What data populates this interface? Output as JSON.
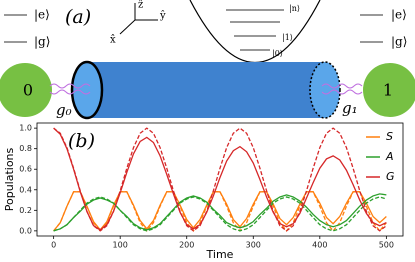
{
  "diagram": {
    "panel_a": "(a)",
    "left_e": "|e⟩",
    "left_g": "|g⟩",
    "right_e": "|e⟩",
    "right_g": "|g⟩",
    "axis_z": "ẑ",
    "axis_y": "ŷ",
    "axis_x": "x̂",
    "level_n": "|n⟩",
    "level_1": "|1⟩",
    "level_0": "|0⟩",
    "qubit_0": "0",
    "qubit_1": "1",
    "coupling_0": "g₀",
    "coupling_1": "g₁"
  },
  "chart_data": {
    "type": "line",
    "panel_label": "(b)",
    "x_label": "Time",
    "y_label": "Populations",
    "x": [
      0,
      10,
      20,
      30,
      40,
      50,
      60,
      70,
      80,
      90,
      100,
      110,
      120,
      130,
      140,
      150,
      160,
      170,
      180,
      190,
      200,
      210,
      220,
      230,
      240,
      250,
      260,
      270,
      280,
      290,
      300,
      310,
      320,
      330,
      340,
      350,
      360,
      370,
      380,
      390,
      400,
      410,
      420,
      430,
      440,
      450,
      460,
      470,
      480,
      490,
      500
    ],
    "xlim": [
      -25,
      525
    ],
    "xticks": [
      0,
      100,
      200,
      300,
      400,
      500
    ],
    "ylim": [
      -0.05,
      1.05
    ],
    "yticks": [
      {
        "value": 0,
        "label": "0.0"
      },
      0.2,
      0.4,
      0.6,
      0.8,
      {
        "value": 1,
        "label": "1.0"
      }
    ],
    "legend": "upper right",
    "series": [
      {
        "name": "S",
        "color": "#ff7f0e",
        "values": [
          0,
          0.08,
          0.24,
          0.38,
          0.38,
          0.24,
          0.09,
          0.01,
          0.09,
          0.25,
          0.38,
          0.38,
          0.25,
          0.1,
          0.02,
          0.1,
          0.25,
          0.38,
          0.38,
          0.25,
          0.11,
          0.03,
          0.11,
          0.25,
          0.38,
          0.38,
          0.26,
          0.11,
          0.04,
          0.12,
          0.26,
          0.38,
          0.38,
          0.26,
          0.12,
          0.06,
          0.13,
          0.26,
          0.38,
          0.38,
          0.27,
          0.13,
          0.07,
          0.14,
          0.27,
          0.38,
          0.38,
          0.27,
          0.14,
          0.08,
          0.14
        ],
        "dashed_values": [
          0,
          0.08,
          0.24,
          0.38,
          0.38,
          0.24,
          0.08,
          0,
          0.08,
          0.24,
          0.38,
          0.38,
          0.24,
          0.08,
          0,
          0.08,
          0.24,
          0.38,
          0.38,
          0.24,
          0.08,
          0,
          0.08,
          0.24,
          0.38,
          0.38,
          0.24,
          0.08,
          0,
          0.08,
          0.24,
          0.38,
          0.38,
          0.24,
          0.08,
          0,
          0.08,
          0.24,
          0.38,
          0.38,
          0.24,
          0.08,
          0,
          0.08,
          0.24,
          0.38,
          0.38,
          0.24,
          0.08,
          0,
          0.08
        ]
      },
      {
        "name": "A",
        "color": "#2ca02c",
        "values": [
          0,
          0.02,
          0.06,
          0.13,
          0.19,
          0.26,
          0.3,
          0.32,
          0.3,
          0.27,
          0.2,
          0.14,
          0.07,
          0.03,
          0.01,
          0.03,
          0.07,
          0.14,
          0.21,
          0.28,
          0.32,
          0.34,
          0.32,
          0.28,
          0.21,
          0.15,
          0.08,
          0.05,
          0.03,
          0.05,
          0.09,
          0.16,
          0.22,
          0.29,
          0.33,
          0.35,
          0.33,
          0.29,
          0.23,
          0.16,
          0.1,
          0.06,
          0.04,
          0.06,
          0.1,
          0.17,
          0.24,
          0.3,
          0.34,
          0.36,
          0.35
        ],
        "dashed_values": [
          0,
          0.02,
          0.06,
          0.13,
          0.2,
          0.27,
          0.31,
          0.33,
          0.31,
          0.27,
          0.2,
          0.13,
          0.06,
          0.02,
          0,
          0.02,
          0.06,
          0.13,
          0.2,
          0.27,
          0.31,
          0.33,
          0.31,
          0.27,
          0.2,
          0.13,
          0.06,
          0.02,
          0,
          0.02,
          0.06,
          0.13,
          0.2,
          0.27,
          0.31,
          0.33,
          0.31,
          0.27,
          0.2,
          0.13,
          0.06,
          0.02,
          0,
          0.02,
          0.06,
          0.13,
          0.2,
          0.27,
          0.31,
          0.33,
          0.31
        ]
      },
      {
        "name": "G",
        "color": "#d62728",
        "values": [
          1,
          0.94,
          0.8,
          0.6,
          0.38,
          0.19,
          0.05,
          0.01,
          0.06,
          0.19,
          0.37,
          0.57,
          0.75,
          0.87,
          0.91,
          0.86,
          0.73,
          0.55,
          0.36,
          0.18,
          0.06,
          0.02,
          0.06,
          0.18,
          0.34,
          0.52,
          0.68,
          0.78,
          0.82,
          0.77,
          0.66,
          0.5,
          0.33,
          0.18,
          0.07,
          0.04,
          0.07,
          0.17,
          0.32,
          0.47,
          0.61,
          0.7,
          0.73,
          0.69,
          0.59,
          0.45,
          0.3,
          0.17,
          0.08,
          0.05,
          0.08
        ],
        "dashed_values": [
          1,
          0.95,
          0.81,
          0.61,
          0.39,
          0.19,
          0.05,
          0,
          0.05,
          0.19,
          0.39,
          0.61,
          0.81,
          0.95,
          1,
          0.95,
          0.81,
          0.61,
          0.39,
          0.19,
          0.05,
          0,
          0.05,
          0.19,
          0.39,
          0.61,
          0.81,
          0.95,
          1,
          0.95,
          0.81,
          0.61,
          0.39,
          0.19,
          0.05,
          0,
          0.05,
          0.19,
          0.39,
          0.61,
          0.81,
          0.95,
          1,
          0.95,
          0.81,
          0.61,
          0.39,
          0.19,
          0.05,
          0,
          0.05
        ]
      }
    ]
  }
}
